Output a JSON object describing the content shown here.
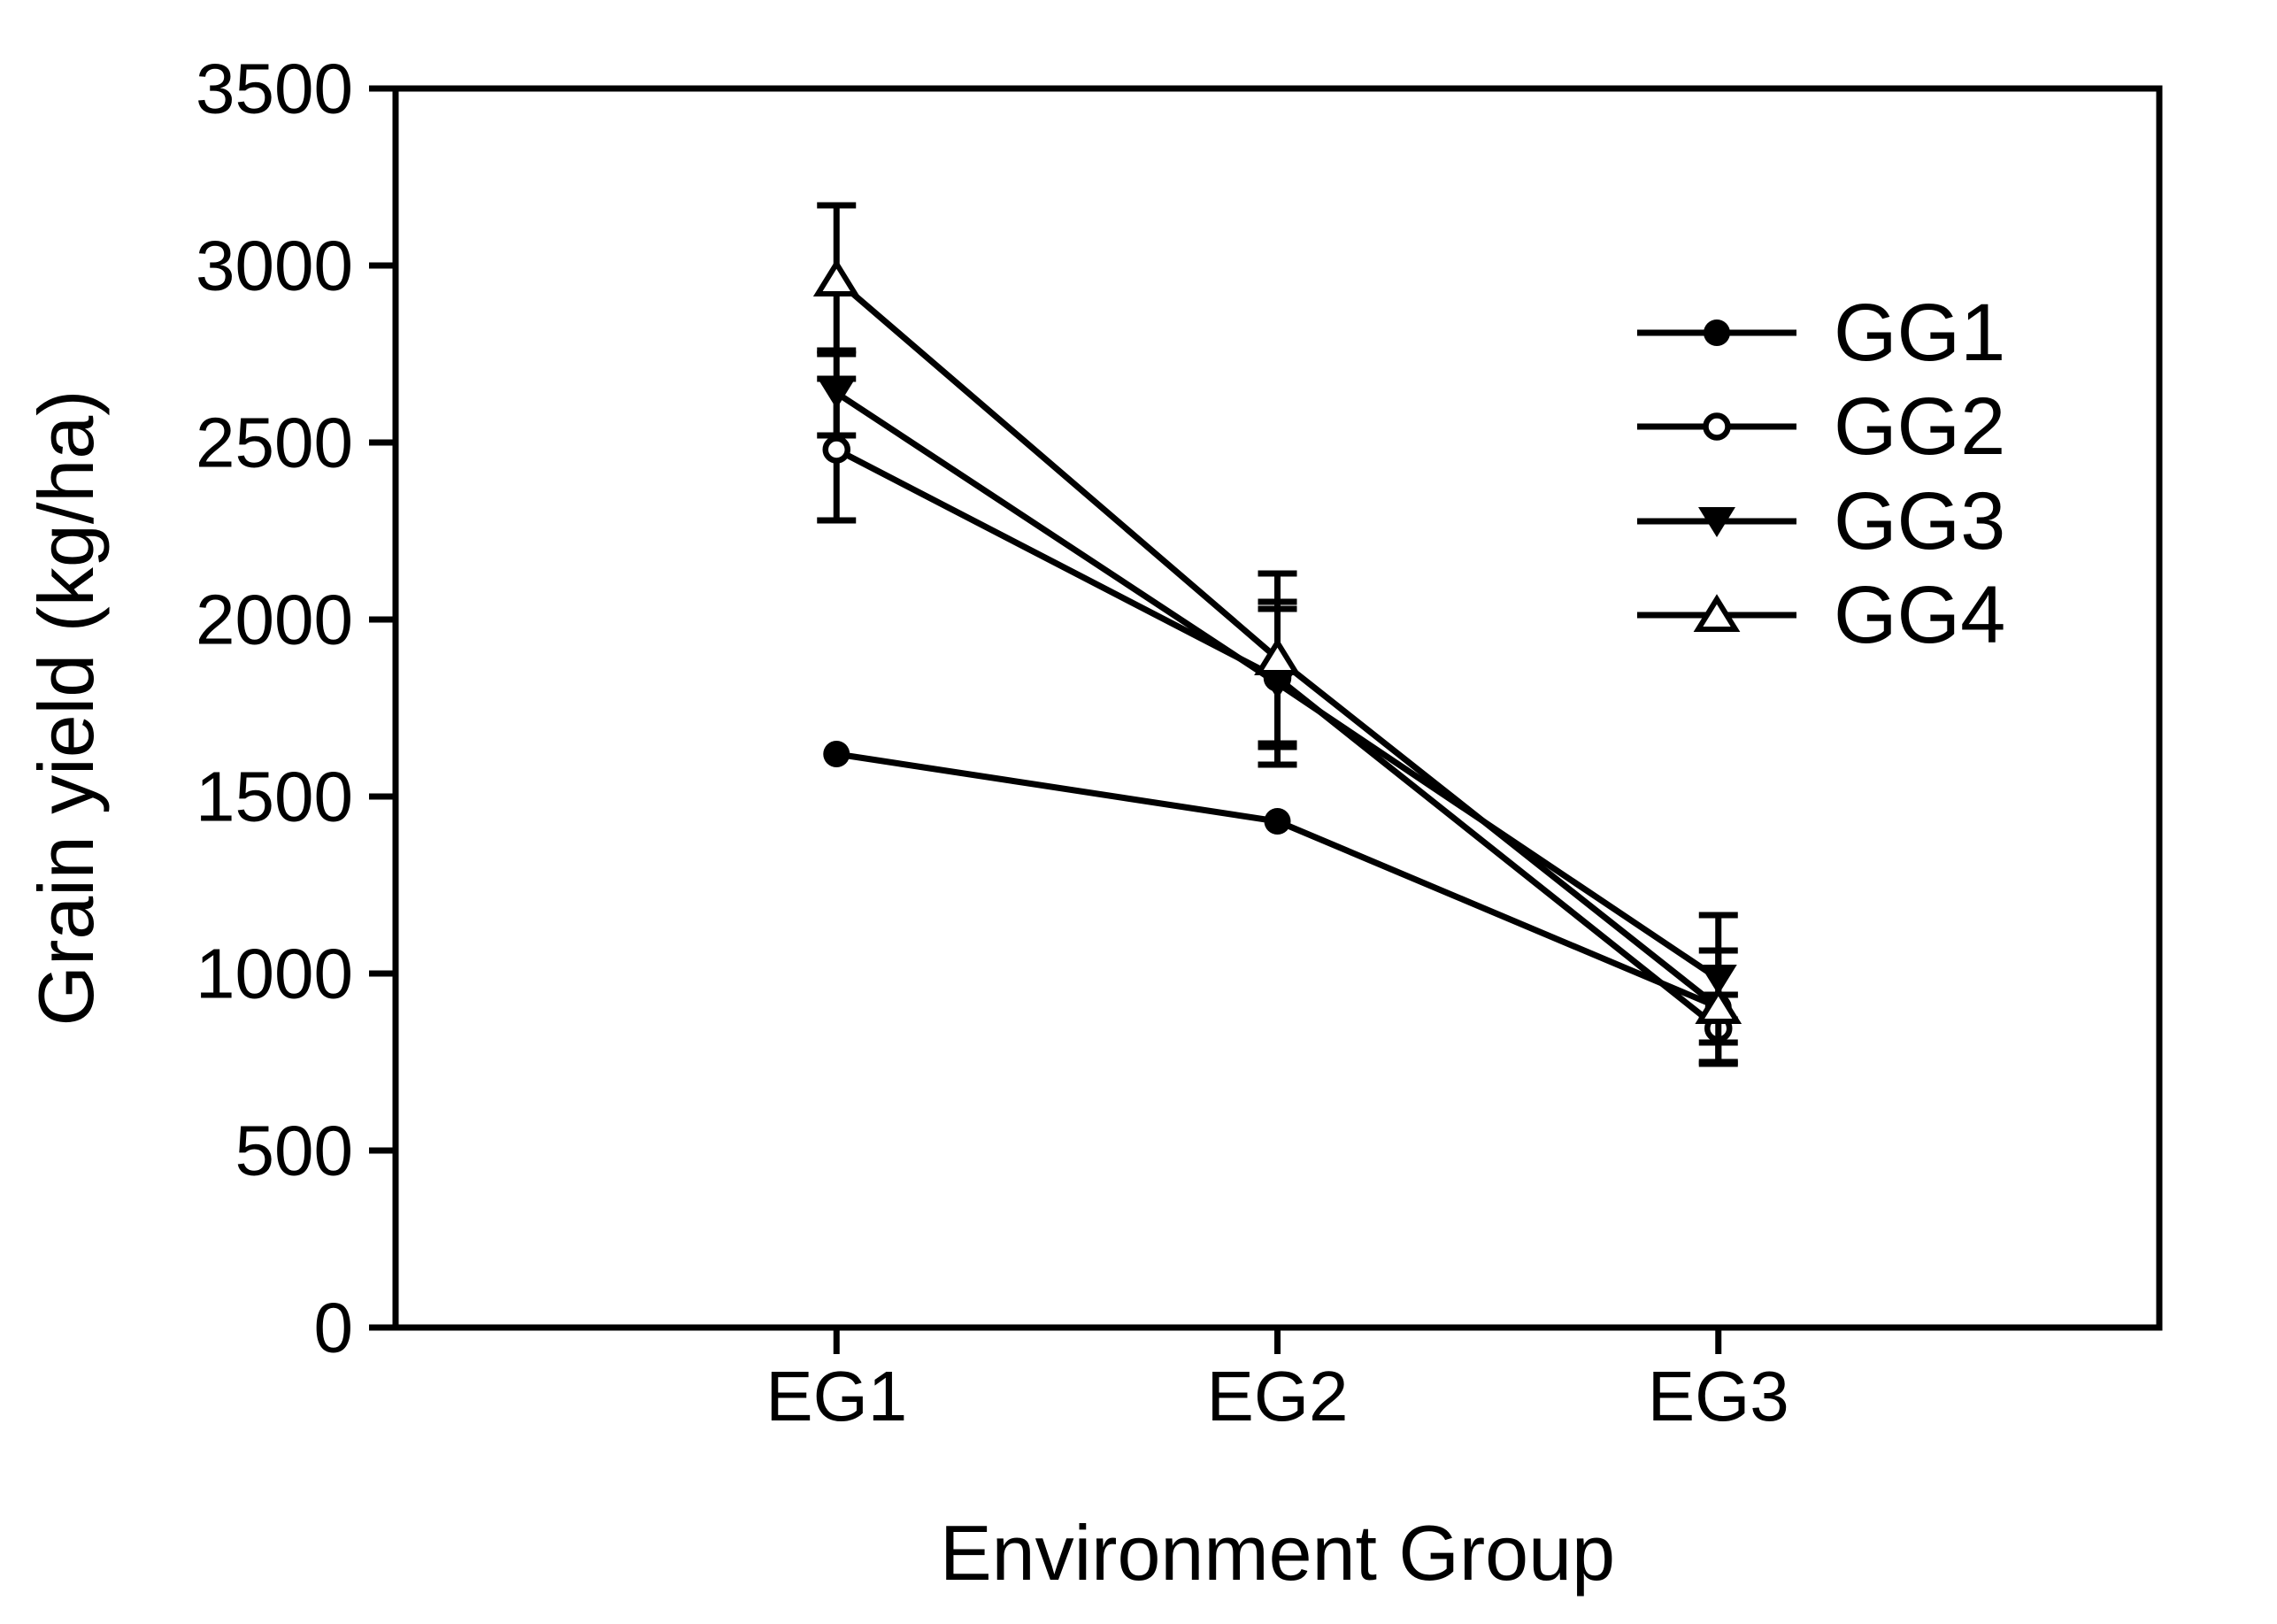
{
  "figure": {
    "background": "#ffffff",
    "foreground": "#000000"
  },
  "chart_data": {
    "type": "line",
    "title": "",
    "xlabel": "Environment Group",
    "ylabel": "Grain yield (kg/ha)",
    "categories": [
      "EG1",
      "EG2",
      "EG3"
    ],
    "ylim": [
      0,
      3500
    ],
    "ytick_step": 500,
    "y_tick_labels": [
      "0",
      "500",
      "1000",
      "1500",
      "2000",
      "2500",
      "3000",
      "3500"
    ],
    "grid": false,
    "error_bars": true,
    "legend": {
      "position": "upper-right",
      "entries": [
        "GG1",
        "GG2",
        "GG3",
        "GG4"
      ]
    },
    "colors": {
      "line": "#000000",
      "marker_fill": "#000000",
      "open_marker_fill": "#ffffff",
      "background": "#ffffff"
    },
    "series": [
      {
        "name": "GG1",
        "marker": "filled-circle",
        "values": [
          1620,
          1430,
          905
        ],
        "errors": [
          0,
          0,
          160
        ]
      },
      {
        "name": "GG2",
        "marker": "open-circle",
        "values": [
          2480,
          1835,
          845
        ],
        "errors": [
          200,
          195,
          95
        ]
      },
      {
        "name": "GG3",
        "marker": "filled-triangle-down",
        "values": [
          2640,
          1820,
          985
        ],
        "errors": [
          120,
          230,
          180
        ]
      },
      {
        "name": "GG4",
        "marker": "open-triangle-up",
        "values": [
          2960,
          1890,
          905
        ],
        "errors": [
          210,
          240,
          35
        ]
      }
    ]
  }
}
